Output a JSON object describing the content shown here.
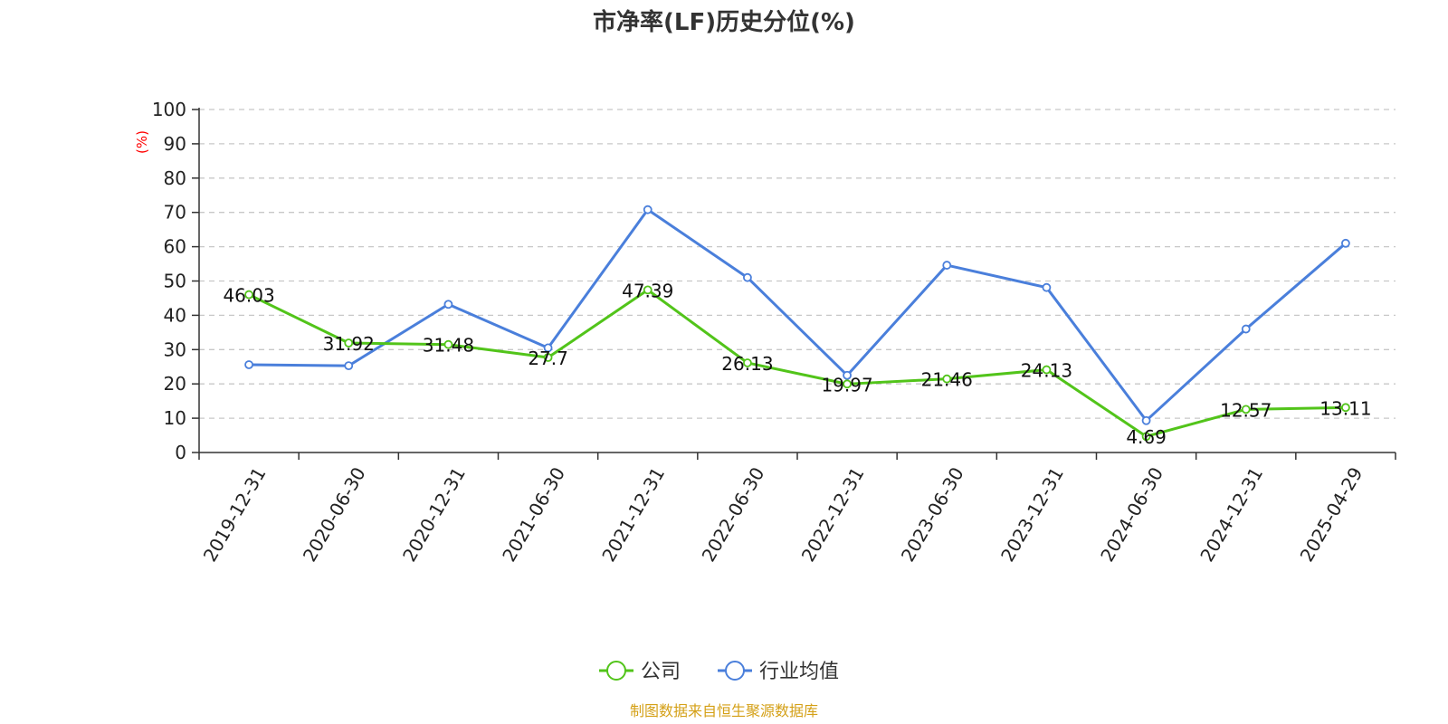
{
  "chart_data": {
    "type": "line",
    "title": "市净率(LF)历史分位(%)",
    "ylabel": "(%)",
    "ylim": [
      0,
      100
    ],
    "yticks": [
      0,
      10,
      20,
      30,
      40,
      50,
      60,
      70,
      80,
      90,
      100
    ],
    "grid": true,
    "legend_position": "bottom-center",
    "categories": [
      "2019-12-31",
      "2020-06-30",
      "2020-12-31",
      "2021-06-30",
      "2021-12-31",
      "2022-06-30",
      "2022-12-31",
      "2023-06-30",
      "2023-12-31",
      "2024-06-30",
      "2024-12-31",
      "2025-04-29"
    ],
    "series": [
      {
        "name": "公司",
        "color": "#52c41a",
        "values": [
          46.03,
          31.92,
          31.48,
          27.7,
          47.39,
          26.13,
          19.97,
          21.46,
          24.13,
          4.69,
          12.57,
          13.11
        ],
        "labels": [
          "46.03",
          "31.92",
          "31.48",
          "27.7",
          "47.39",
          "26.13",
          "19.97",
          "21.46",
          "24.13",
          "4.69",
          "12.57",
          "13.11"
        ]
      },
      {
        "name": "行业均值",
        "color": "#4a7fdb",
        "values": [
          25.6,
          25.3,
          43.2,
          30.5,
          70.8,
          51.0,
          22.5,
          54.6,
          48.1,
          9.3,
          36.0,
          61.0
        ]
      }
    ]
  },
  "footer": {
    "source": "制图数据来自恒生聚源数据库"
  }
}
